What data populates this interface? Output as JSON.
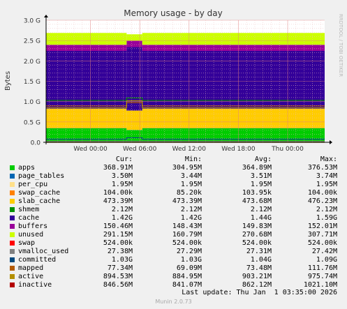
{
  "chart_data": {
    "type": "area",
    "title": "Memory usage - by day",
    "ylabel": "Bytes",
    "side_label": "RRDTOOL / TOBI OETIKER",
    "ylim": [
      0,
      3.0
    ],
    "y_unit": "G",
    "y_ticks": [
      "0.0",
      "0.5 G",
      "1.0 G",
      "1.5 G",
      "2.0 G",
      "2.5 G",
      "3.0 G"
    ],
    "x_ticks": [
      "Wed 00:00",
      "Wed 06:00",
      "Wed 12:00",
      "Wed 18:00",
      "Thu 00:00"
    ],
    "x_range_hours": [
      -5.4,
      28.5
    ],
    "x_tick_hours": [
      0,
      6,
      12,
      18,
      24
    ],
    "grid": true,
    "stack_order": [
      "apps",
      "page_tables",
      "per_cpu",
      "swap_cache",
      "slab_cache",
      "shmem",
      "cache",
      "buffers",
      "unused",
      "swap"
    ],
    "series": [
      {
        "name": "apps",
        "color": "#00cc00",
        "stacked": true,
        "typical_gb": 0.345,
        "event_gb": 0.3
      },
      {
        "name": "page_tables",
        "color": "#0066b3",
        "stacked": true,
        "typical_gb": 0.0035,
        "event_gb": 0.0035
      },
      {
        "name": "per_cpu",
        "color": "#ff8000",
        "stacked": true,
        "typical_gb": 0.002,
        "event_gb": 0.002
      },
      {
        "name": "swap_cache",
        "color": "#ffcc00",
        "stacked": true,
        "typical_gb": 0.0001,
        "event_gb": 0.0001
      },
      {
        "name": "slab_cache",
        "color": "#ffcc00",
        "stacked": true,
        "typical_gb": 0.4734,
        "event_gb": 0.4734
      },
      {
        "name": "shmem",
        "color": "#330099",
        "stacked": true,
        "typical_gb": 0.002,
        "event_gb": 0.002
      },
      {
        "name": "cache",
        "color": "#330099",
        "stacked": true,
        "typical_gb": 1.42,
        "event_gb": 1.56
      },
      {
        "name": "buffers",
        "color": "#990099",
        "stacked": true,
        "typical_gb": 0.15,
        "event_gb": 0.152
      },
      {
        "name": "unused",
        "color": "#ccff00",
        "stacked": true,
        "typical_gb": 0.291,
        "event_gb": 0.161
      },
      {
        "name": "swap",
        "color": "#ff0000",
        "stacked": false,
        "typical_gb": 0.0005,
        "event_gb": 0.0005
      },
      {
        "name": "vmalloc_used",
        "color": "#808080",
        "stacked": false,
        "typical_gb": 0.027,
        "event_gb": 0.027
      },
      {
        "name": "committed",
        "color": "#008f00",
        "stacked": false,
        "typical_gb": 1.03,
        "event_gb": 1.09
      },
      {
        "name": "mapped",
        "color": "#00487d",
        "stacked": false,
        "typical_gb": 0.0773,
        "event_gb": 0.1117
      },
      {
        "name": "active",
        "color": "#b35a00",
        "stacked": false,
        "typical_gb": 0.894,
        "event_gb": 0.975
      },
      {
        "name": "inactive",
        "color": "#b38f00",
        "stacked": false,
        "typical_gb": 0.846,
        "event_gb": 1.0211
      }
    ],
    "event_hours": [
      4.4,
      6.3
    ],
    "legend": {
      "headers": [
        "Cur:",
        "Min:",
        "Avg:",
        "Max:"
      ],
      "rows": [
        {
          "name": "apps",
          "color": "#00cc00",
          "values": [
            "368.91M",
            "304.95M",
            "364.89M",
            "376.53M"
          ]
        },
        {
          "name": "page_tables",
          "color": "#0066b3",
          "values": [
            "3.50M",
            "3.44M",
            "3.51M",
            "3.74M"
          ]
        },
        {
          "name": "per_cpu",
          "color": "#ffe08a",
          "values": [
            "1.95M",
            "1.95M",
            "1.95M",
            "1.95M"
          ]
        },
        {
          "name": "swap_cache",
          "color": "#ff8000",
          "values": [
            "104.00k",
            "85.20k",
            "103.95k",
            "104.00k"
          ]
        },
        {
          "name": "slab_cache",
          "color": "#ffcc00",
          "values": [
            "473.39M",
            "473.39M",
            "473.68M",
            "476.23M"
          ]
        },
        {
          "name": "shmem",
          "color": "#008f00",
          "values": [
            "2.12M",
            "2.12M",
            "2.12M",
            "2.12M"
          ]
        },
        {
          "name": "cache",
          "color": "#330099",
          "values": [
            "1.42G",
            "1.42G",
            "1.44G",
            "1.59G"
          ]
        },
        {
          "name": "buffers",
          "color": "#990099",
          "values": [
            "150.46M",
            "148.43M",
            "149.83M",
            "152.01M"
          ]
        },
        {
          "name": "unused",
          "color": "#ccff00",
          "values": [
            "291.15M",
            "160.79M",
            "270.68M",
            "307.71M"
          ]
        },
        {
          "name": "swap",
          "color": "#ff0000",
          "values": [
            "524.00k",
            "524.00k",
            "524.00k",
            "524.00k"
          ]
        },
        {
          "name": "vmalloc_used",
          "color": "#808080",
          "values": [
            "27.38M",
            "27.29M",
            "27.31M",
            "27.42M"
          ]
        },
        {
          "name": "committed",
          "color": "#00487d",
          "values": [
            "1.03G",
            "1.03G",
            "1.04G",
            "1.09G"
          ]
        },
        {
          "name": "mapped",
          "color": "#b35a00",
          "values": [
            "77.34M",
            "69.09M",
            "73.48M",
            "111.76M"
          ]
        },
        {
          "name": "active",
          "color": "#b38f00",
          "values": [
            "894.53M",
            "884.95M",
            "903.21M",
            "975.74M"
          ]
        },
        {
          "name": "inactive",
          "color": "#b30000",
          "values": [
            "846.56M",
            "841.07M",
            "862.12M",
            "1021.10M"
          ]
        }
      ]
    }
  },
  "footer": {
    "last_update": "Last update: Thu Jan  1 03:35:00 2026",
    "version": "Munin 2.0.73"
  }
}
